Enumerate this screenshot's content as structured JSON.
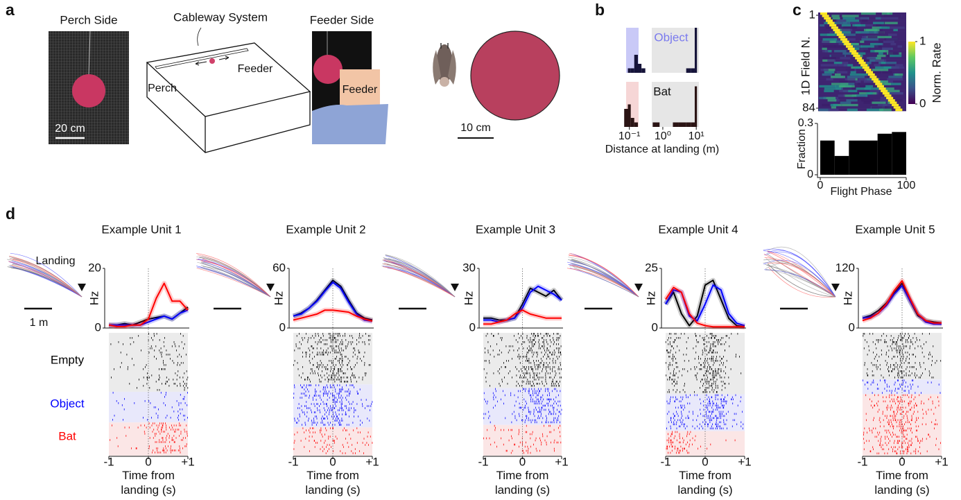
{
  "panel_labels": [
    "a",
    "b",
    "c",
    "d"
  ],
  "panel_a": {
    "perch_title": "Perch Side",
    "perch_scale": "20 cm",
    "cableway_title": "Cableway System",
    "cableway_perch": "Perch",
    "cableway_feeder": "Feeder",
    "feeder_title": "Feeder Side",
    "feeder_box": "Feeder",
    "object_scale": "10 cm"
  },
  "panel_d": {
    "landing": "Landing",
    "trajectory_scale": "1 m"
  },
  "chart_data": [
    {
      "type": "histogram",
      "xlabel": "Distance at landing (m)",
      "log_x": true,
      "xlim": [
        0.06,
        12
      ],
      "xticks": [
        {
          "value": 0.1,
          "label": "10⁻¹"
        },
        {
          "value": 1,
          "label": "10⁰"
        },
        {
          "value": 10,
          "label": "10¹"
        }
      ],
      "bins": [
        0.07,
        0.09,
        0.11,
        0.14,
        0.18,
        0.23,
        0.3,
        0.5,
        0.8,
        1.2,
        2,
        3,
        5,
        7,
        9,
        10.5,
        12
      ],
      "series": [
        {
          "name": "Object",
          "color": "#16143a",
          "values": [
            0,
            1,
            1,
            4,
            2,
            1,
            0,
            0,
            0,
            0,
            0,
            0,
            1,
            1,
            10,
            0
          ]
        },
        {
          "name": "Bat",
          "color": "#2b1414",
          "values": [
            4,
            5,
            2,
            1,
            0,
            0,
            0,
            1,
            0,
            0,
            1,
            1,
            1,
            1,
            9,
            0
          ]
        }
      ]
    },
    {
      "type": "heatmap",
      "ylabel": "1D Field N.",
      "ylim": [
        1,
        84
      ],
      "yticks": [
        1,
        84
      ],
      "colorbar": {
        "label": "Norm. Rate",
        "lim": [
          0,
          1
        ],
        "ticks": [
          0,
          1
        ]
      }
    },
    {
      "type": "histogram",
      "xlabel": "Flight Phase",
      "ylabel": "Fraction",
      "color": "#000000",
      "bins": [
        0,
        16.67,
        33.33,
        50,
        66.67,
        83.33,
        100
      ],
      "values": [
        0.2,
        0.11,
        0.2,
        0.2,
        0.24,
        0.25
      ],
      "xlim": [
        0,
        100
      ],
      "xticks": [
        0,
        100
      ],
      "ylim": [
        0,
        0.3
      ],
      "yticks": [
        0,
        0.3
      ]
    },
    {
      "type": "line",
      "title": "Example Unit 1",
      "ylabel": "Hz",
      "xlabel": "Time from landing (s)",
      "x": [
        -1,
        -0.8,
        -0.6,
        -0.4,
        -0.2,
        0,
        0.2,
        0.4,
        0.6,
        0.8,
        1
      ],
      "xlim": [
        -1,
        1
      ],
      "xticks": [
        -1,
        0,
        {
          "value": 1,
          "label": "+1"
        }
      ],
      "ylim": [
        0,
        20
      ],
      "yticks": [
        0,
        20
      ],
      "series": [
        {
          "name": "Empty",
          "color": "#000000",
          "values": [
            1,
            1,
            1.5,
            1,
            2,
            3,
            3.5,
            4,
            3,
            5,
            7
          ]
        },
        {
          "name": "Object",
          "color": "#0000ff",
          "values": [
            1,
            1,
            1,
            1,
            1,
            2,
            3,
            4,
            3,
            5,
            6
          ]
        },
        {
          "name": "Bat",
          "color": "#ff0000",
          "values": [
            1,
            0.5,
            0.5,
            1,
            1,
            3,
            10,
            15,
            9,
            9,
            6
          ]
        }
      ]
    },
    {
      "type": "line",
      "title": "Example Unit 2",
      "ylabel": "Hz",
      "xlabel": "Time from landing (s)",
      "x": [
        -1,
        -0.8,
        -0.6,
        -0.4,
        -0.2,
        0,
        0.2,
        0.4,
        0.6,
        0.8,
        1
      ],
      "xlim": [
        -1,
        1
      ],
      "xticks": [
        -1,
        0,
        {
          "value": 1,
          "label": "+1"
        }
      ],
      "ylim": [
        0,
        60
      ],
      "yticks": [
        0,
        60
      ],
      "series": [
        {
          "name": "Empty",
          "color": "#000000",
          "values": [
            12,
            15,
            20,
            28,
            38,
            48,
            42,
            28,
            15,
            10,
            8
          ]
        },
        {
          "name": "Object",
          "color": "#0000ff",
          "values": [
            12,
            14,
            20,
            27,
            37,
            46,
            40,
            26,
            14,
            8,
            7
          ]
        },
        {
          "name": "Bat",
          "color": "#ff0000",
          "values": [
            8,
            10,
            12,
            14,
            18,
            18,
            17,
            16,
            12,
            9,
            7
          ]
        }
      ]
    },
    {
      "type": "line",
      "title": "Example Unit 3",
      "ylabel": "Hz",
      "xlabel": "Time from landing (s)",
      "x": [
        -1,
        -0.8,
        -0.6,
        -0.4,
        -0.2,
        0,
        0.2,
        0.4,
        0.6,
        0.8,
        1
      ],
      "xlim": [
        -1,
        1
      ],
      "xticks": [
        -1,
        0,
        {
          "value": 1,
          "label": "+1"
        }
      ],
      "ylim": [
        0,
        30
      ],
      "yticks": [
        0,
        30
      ],
      "series": [
        {
          "name": "Empty",
          "color": "#000000",
          "values": [
            5,
            5,
            4,
            4,
            5,
            12,
            20,
            18,
            16,
            19,
            14
          ]
        },
        {
          "name": "Object",
          "color": "#0000ff",
          "values": [
            4,
            4,
            3,
            4,
            5,
            10,
            18,
            21,
            19,
            17,
            14
          ]
        },
        {
          "name": "Bat",
          "color": "#ff0000",
          "values": [
            2,
            2,
            3,
            4,
            7,
            9,
            7,
            6,
            5,
            5,
            5
          ]
        }
      ]
    },
    {
      "type": "line",
      "title": "Example Unit 4",
      "ylabel": "Hz",
      "xlabel": "Time from landing (s)",
      "x": [
        -1,
        -0.8,
        -0.6,
        -0.4,
        -0.2,
        0,
        0.2,
        0.4,
        0.6,
        0.8,
        1
      ],
      "xlim": [
        -1,
        1
      ],
      "xticks": [
        -1,
        0,
        {
          "value": 1,
          "label": "+1"
        }
      ],
      "ylim": [
        0,
        25
      ],
      "yticks": [
        0,
        25
      ],
      "series": [
        {
          "name": "Empty",
          "color": "#000000",
          "values": [
            10,
            15,
            6,
            1,
            5,
            18,
            20,
            12,
            4,
            1,
            0.5
          ]
        },
        {
          "name": "Object",
          "color": "#0000ff",
          "values": [
            10,
            16,
            15,
            5,
            3,
            10,
            18,
            16,
            6,
            2,
            1
          ]
        },
        {
          "name": "Bat",
          "color": "#ff0000",
          "values": [
            12,
            17,
            15,
            6,
            2,
            1,
            0.5,
            0.5,
            0.5,
            0.5,
            0.5
          ]
        }
      ]
    },
    {
      "type": "line",
      "title": "Example Unit 5",
      "ylabel": "Hz",
      "xlabel": "Time from landing (s)",
      "x": [
        -1,
        -0.8,
        -0.6,
        -0.4,
        -0.2,
        0,
        0.2,
        0.4,
        0.6,
        0.8,
        1
      ],
      "xlim": [
        -1,
        1
      ],
      "xticks": [
        -1,
        0,
        {
          "value": 1,
          "label": "+1"
        }
      ],
      "ylim": [
        0,
        120
      ],
      "yticks": [
        0,
        120
      ],
      "series": [
        {
          "name": "Empty",
          "color": "#000000",
          "values": [
            20,
            25,
            35,
            50,
            70,
            90,
            55,
            25,
            15,
            12,
            10
          ]
        },
        {
          "name": "Object",
          "color": "#0000ff",
          "values": [
            20,
            22,
            30,
            45,
            68,
            85,
            55,
            28,
            12,
            8,
            8
          ]
        },
        {
          "name": "Bat",
          "color": "#ff0000",
          "values": [
            15,
            20,
            30,
            48,
            75,
            95,
            60,
            28,
            15,
            10,
            10
          ]
        }
      ]
    }
  ]
}
